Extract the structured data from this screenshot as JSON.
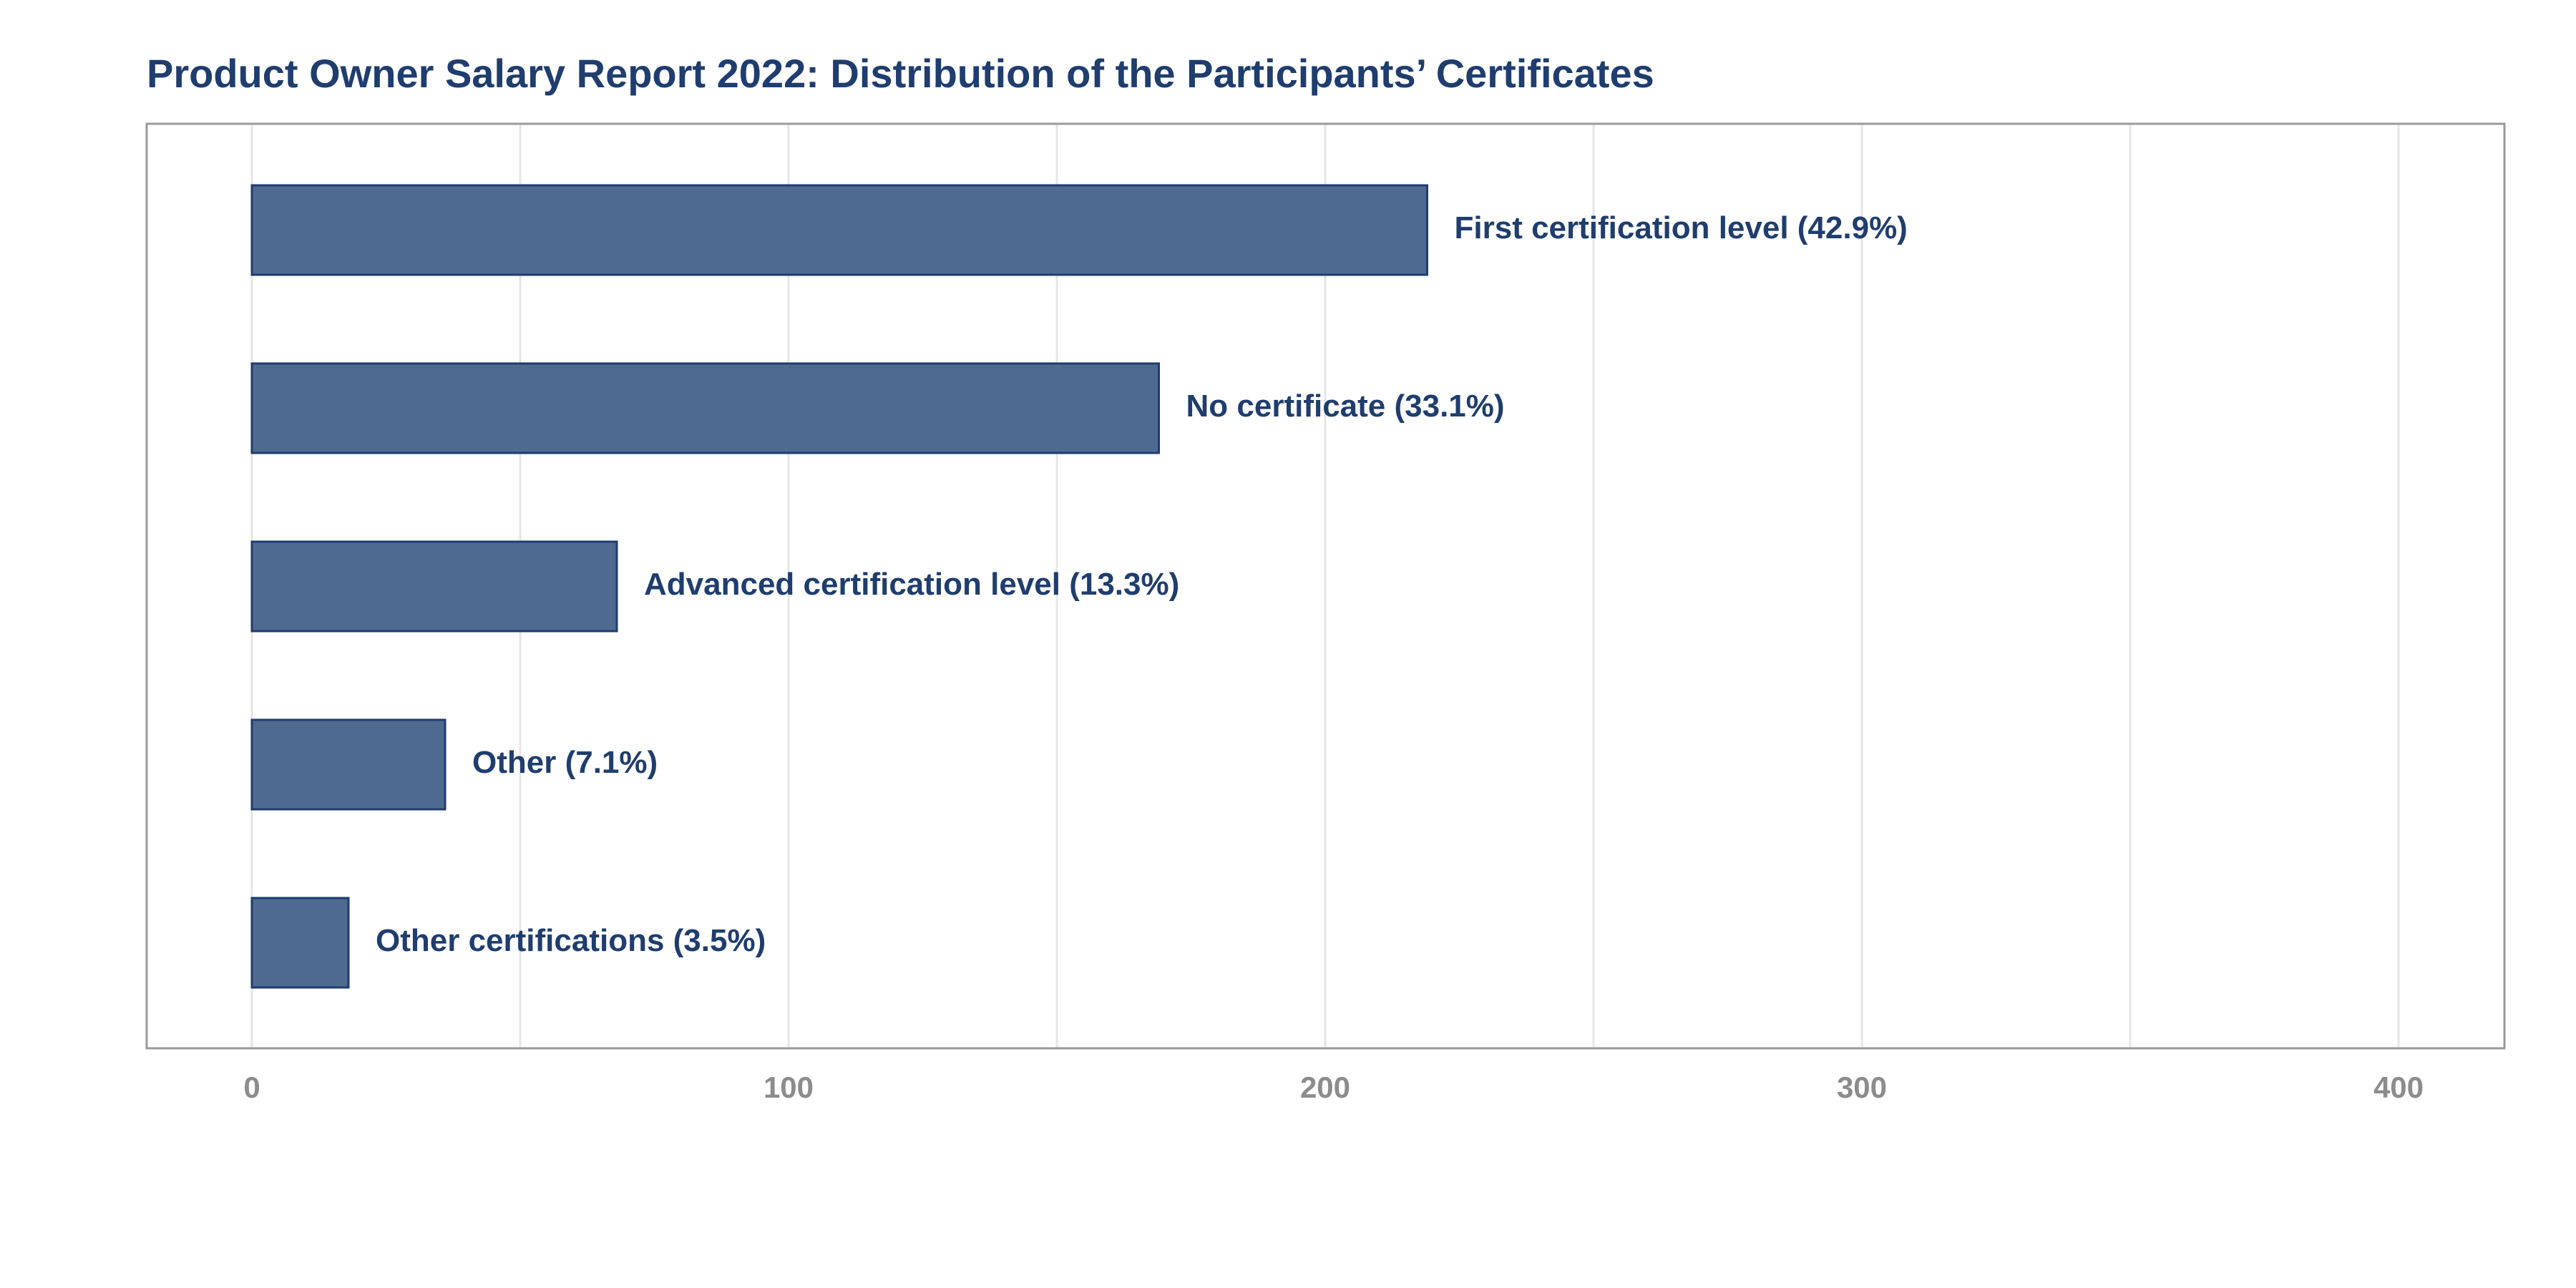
{
  "chart_data": {
    "type": "bar",
    "orientation": "horizontal",
    "title": "Product Owner Salary Report 2022: Distribution of the Participants’ Certificates",
    "xlabel": "",
    "ylabel": "",
    "xlim": [
      0,
      400
    ],
    "x_ticks": [
      0,
      100,
      200,
      300,
      400
    ],
    "grid": "vertical",
    "categories": [
      "First certification level",
      "No certificate",
      "Advanced certification level",
      "Other",
      "Other certifications"
    ],
    "values": [
      219,
      169,
      68,
      36,
      18
    ],
    "labels": [
      "First certification level (42.9%)",
      "No certificate (33.1%)",
      "Advanced certification level (13.3%)",
      "Other (7.1%)",
      "Other certifications (3.5%)"
    ],
    "colors": {
      "bar_fill": "#4f6a91",
      "bar_stroke": "#1f3d6e",
      "label": "#1f3d6e",
      "tick": "#8c8c8c",
      "grid": "#e6e6e6",
      "frame": "#9a9a9a"
    }
  }
}
